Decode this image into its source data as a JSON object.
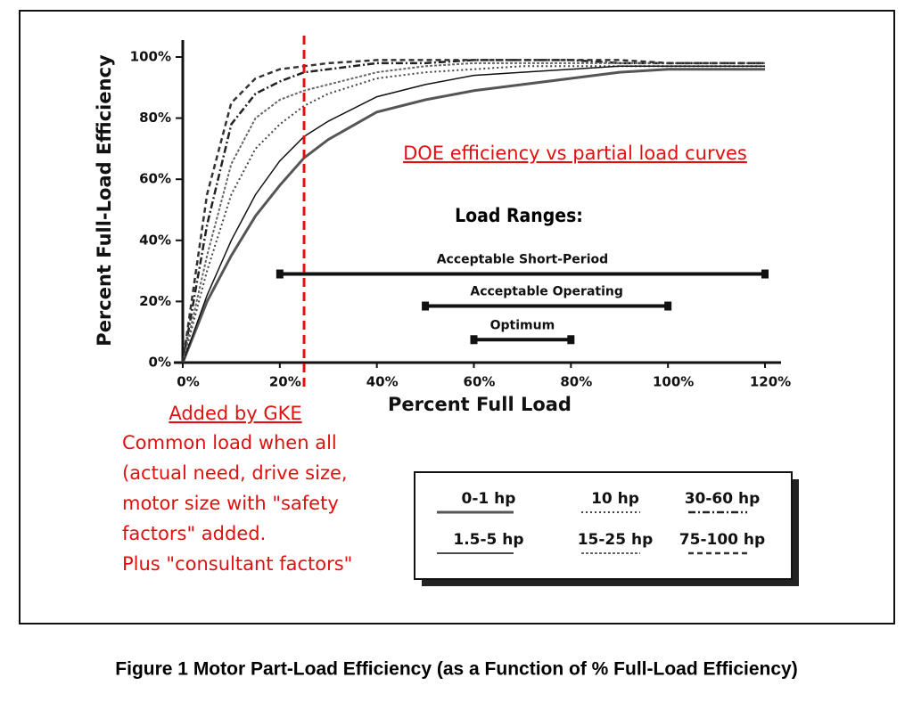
{
  "chart_data": {
    "type": "line",
    "caption": "Figure 1  Motor Part-Load Efficiency (as a Function of % Full-Load Efficiency)",
    "x_label": "Percent Full Load",
    "y_label": "Percent Full-Load Efficiency",
    "x": [
      0,
      5,
      10,
      15,
      20,
      25,
      30,
      40,
      50,
      60,
      70,
      80,
      90,
      100,
      110,
      120
    ],
    "series": [
      {
        "name": "0-1 hp",
        "color": "#555555",
        "values": [
          0,
          20,
          35,
          48,
          58,
          67,
          73,
          82,
          86,
          89,
          91,
          93,
          95,
          96,
          96,
          96
        ]
      },
      {
        "name": "10 hp",
        "color": "#444444",
        "values": [
          0,
          30,
          55,
          70,
          78,
          84,
          88,
          93,
          95,
          96,
          97,
          97,
          97,
          97,
          97,
          97
        ]
      },
      {
        "name": "30-60 hp",
        "color": "#222222",
        "values": [
          0,
          45,
          78,
          88,
          92,
          95,
          96,
          98,
          98,
          99,
          99,
          99,
          98,
          98,
          98,
          98
        ]
      },
      {
        "name": "1.5-5 hp",
        "color": "#111111",
        "values": [
          0,
          22,
          40,
          55,
          66,
          74,
          79,
          87,
          91,
          94,
          95,
          96,
          97,
          97,
          97,
          97
        ]
      },
      {
        "name": "15-25 hp",
        "color": "#666666",
        "values": [
          0,
          35,
          65,
          80,
          86,
          89,
          91,
          95,
          97,
          98,
          98,
          98,
          98,
          98,
          98,
          98
        ]
      },
      {
        "name": "75-100 hp",
        "color": "#333333",
        "values": [
          0,
          55,
          85,
          93,
          96,
          97,
          98,
          99,
          99,
          99,
          99,
          99,
          99,
          98,
          98,
          98
        ]
      }
    ],
    "xlim": [
      0,
      120
    ],
    "ylim": [
      0,
      100
    ],
    "xticks": [
      {
        "value": 0,
        "label": "0%"
      },
      {
        "value": 20,
        "label": "20%"
      },
      {
        "value": 40,
        "label": "40%"
      },
      {
        "value": 60,
        "label": "60%"
      },
      {
        "value": 80,
        "label": "80%"
      },
      {
        "value": 100,
        "label": "100%"
      },
      {
        "value": 120,
        "label": "120%"
      }
    ],
    "yticks": [
      {
        "value": 0,
        "label": "0%"
      },
      {
        "value": 20,
        "label": "20%"
      },
      {
        "value": 40,
        "label": "40%"
      },
      {
        "value": 60,
        "label": "60%"
      },
      {
        "value": 80,
        "label": "80%"
      },
      {
        "value": 100,
        "label": "100%"
      }
    ],
    "load_ranges_title": "Load Ranges:",
    "load_ranges": [
      {
        "label": "Acceptable Short-Period",
        "start": 20,
        "end": 120,
        "y": 29
      },
      {
        "label": "Acceptable Operating",
        "start": 50,
        "end": 100,
        "y": 18.5
      },
      {
        "label": "Optimum",
        "start": 60,
        "end": 80,
        "y": 7.5
      }
    ],
    "annotation": "DOE efficiency vs partial load curves",
    "marker_line": {
      "x": 25,
      "color": "#e01010",
      "label": "Added by GKE",
      "note": [
        "Common load when all",
        "(actual need, drive size,",
        "motor size with \"safety",
        "factors\" added.",
        "Plus \"consultant factors\""
      ]
    }
  }
}
